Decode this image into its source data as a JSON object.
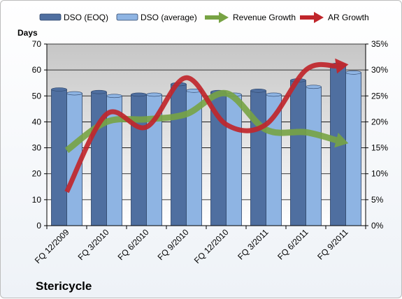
{
  "chart_data": {
    "type": "bar",
    "company": "Stericycle",
    "y_left_title": "Days",
    "categories": [
      "FQ 12/2009",
      "FQ 3/2010",
      "FQ 6/2010",
      "FQ 9/2010",
      "FQ 12/2010",
      "FQ 3/2011",
      "FQ 6/2011",
      "FQ 9/2011"
    ],
    "y_left": {
      "min": 0,
      "max": 70,
      "step": 10,
      "ticks": [
        "0",
        "10",
        "20",
        "30",
        "40",
        "50",
        "60",
        "70"
      ]
    },
    "y_right": {
      "min": 0,
      "max": 35,
      "step": 5,
      "ticks": [
        "0%",
        "5%",
        "10%",
        "15%",
        "20%",
        "25%",
        "30%",
        "35%"
      ]
    },
    "grid": true,
    "legend_position": "top",
    "bar_series": [
      {
        "name": "DSO (EOQ)",
        "color": "#4f6fa0",
        "values": [
          52.5,
          51.5,
          50.5,
          54.5,
          51.5,
          52,
          56,
          62
        ]
      },
      {
        "name": "DSO (average)",
        "color": "#8eb4e3",
        "values": [
          51,
          50,
          50.5,
          52,
          50.5,
          50.5,
          53.5,
          59
        ]
      }
    ],
    "line_series": [
      {
        "name": "Revenue Growth",
        "color": "#77a344",
        "axis": "right",
        "values": [
          14.5,
          20,
          20.5,
          21.5,
          25.5,
          18.5,
          18,
          16
        ]
      },
      {
        "name": "AR Growth",
        "color": "#c0262b",
        "axis": "right",
        "values": [
          6.5,
          21.5,
          19,
          28.5,
          19.5,
          19.5,
          30,
          31
        ]
      }
    ]
  }
}
